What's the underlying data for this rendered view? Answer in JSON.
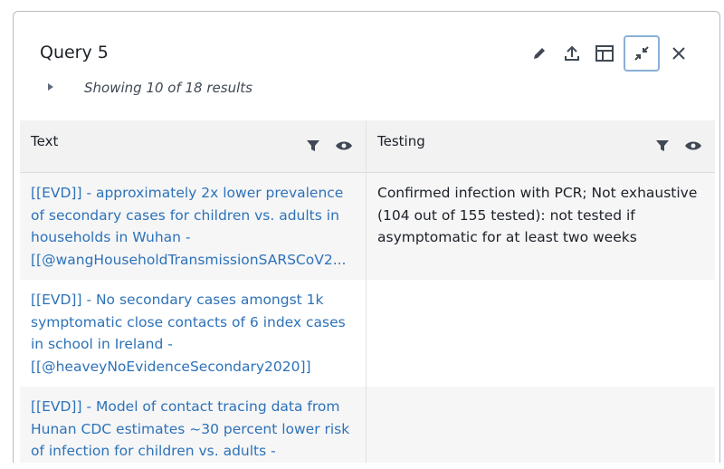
{
  "title": "Query 5",
  "summary": "Showing 10 of 18 results",
  "toolbar": {
    "icons": [
      "pencil-icon",
      "upload-icon",
      "layout-icon",
      "minimize-icon",
      "close-icon"
    ]
  },
  "columns": [
    {
      "label": "Text"
    },
    {
      "label": "Testing"
    }
  ],
  "rows": [
    {
      "text": "[[EVD]] - approximately 2x lower prevalence of secondary cases for children vs. adults in households in Wuhan - [[@wangHouseholdTransmissionSARSCoV2...",
      "testing": "Confirmed infection with PCR; Not exhaustive (104 out of 155 tested): not tested if asymptomatic for at least two weeks"
    },
    {
      "text": "[[EVD]] - No secondary cases amongst 1k symptomatic close contacts of 6 index cases in school in Ireland - [[@heaveyNoEvidenceSecondary2020]]",
      "testing": ""
    },
    {
      "text": "[[EVD]] - Model of contact tracing data from Hunan CDC estimates ~30 percent lower risk of infection for children vs. adults -",
      "testing": ""
    }
  ]
}
